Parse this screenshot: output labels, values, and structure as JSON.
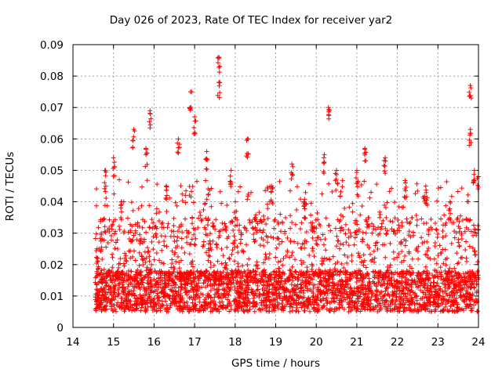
{
  "chart_data": {
    "type": "scatter",
    "title": "Day 026 of 2023, Rate Of TEC Index for receiver yar2",
    "xlabel": "GPS time / hours",
    "ylabel": "ROTI / TECUs",
    "xlim": [
      14,
      24
    ],
    "ylim": [
      0,
      0.09
    ],
    "x_ticks": [
      "14",
      "15",
      "16",
      "17",
      "18",
      "19",
      "20",
      "21",
      "22",
      "23",
      "24"
    ],
    "y_ticks": [
      "0",
      "0.01",
      "0.02",
      "0.03",
      "0.04",
      "0.05",
      "0.06",
      "0.07",
      "0.08",
      "0.09"
    ],
    "grid": true,
    "marker": "+",
    "color": "#ff0000",
    "series": [
      {
        "values_note": "approximate peak ROTI readings per hour bin",
        "points": [
          {
            "x": 14.6,
            "y": 0.022
          },
          {
            "x": 14.7,
            "y": 0.03
          },
          {
            "x": 14.8,
            "y": 0.05
          },
          {
            "x": 15.0,
            "y": 0.054
          },
          {
            "x": 15.2,
            "y": 0.04
          },
          {
            "x": 15.5,
            "y": 0.063
          },
          {
            "x": 15.8,
            "y": 0.057
          },
          {
            "x": 15.9,
            "y": 0.069
          },
          {
            "x": 16.3,
            "y": 0.045
          },
          {
            "x": 16.6,
            "y": 0.06
          },
          {
            "x": 16.9,
            "y": 0.075
          },
          {
            "x": 17.0,
            "y": 0.067
          },
          {
            "x": 17.3,
            "y": 0.056
          },
          {
            "x": 17.6,
            "y": 0.086
          },
          {
            "x": 17.6,
            "y": 0.078
          },
          {
            "x": 17.9,
            "y": 0.05
          },
          {
            "x": 18.3,
            "y": 0.06
          },
          {
            "x": 18.5,
            "y": 0.035
          },
          {
            "x": 18.9,
            "y": 0.045
          },
          {
            "x": 19.4,
            "y": 0.052
          },
          {
            "x": 19.7,
            "y": 0.04
          },
          {
            "x": 20.2,
            "y": 0.055
          },
          {
            "x": 20.3,
            "y": 0.07
          },
          {
            "x": 20.5,
            "y": 0.05
          },
          {
            "x": 21.0,
            "y": 0.05
          },
          {
            "x": 21.2,
            "y": 0.057
          },
          {
            "x": 21.7,
            "y": 0.054
          },
          {
            "x": 22.2,
            "y": 0.046
          },
          {
            "x": 22.7,
            "y": 0.045
          },
          {
            "x": 23.3,
            "y": 0.04
          },
          {
            "x": 23.8,
            "y": 0.077
          },
          {
            "x": 23.8,
            "y": 0.063
          },
          {
            "x": 23.9,
            "y": 0.05
          },
          {
            "x": 24.0,
            "y": 0.048
          }
        ]
      }
    ]
  }
}
